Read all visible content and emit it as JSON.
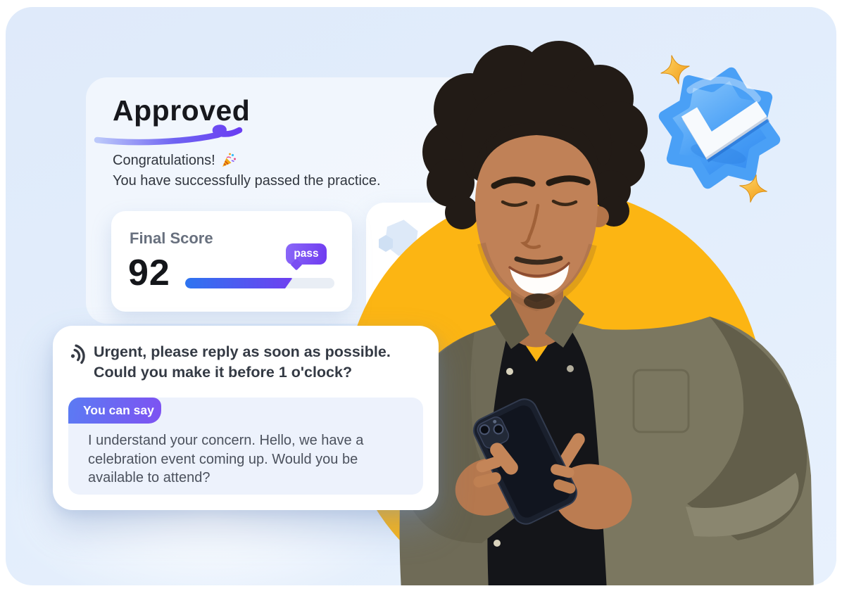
{
  "hero": {
    "approved_title": "Approved",
    "congrats_text": "Congratulations!",
    "success_text": "You have successfully passed the practice."
  },
  "score_card": {
    "label": "Final Score",
    "score": "92",
    "badge_label": "pass",
    "progress_percent": 72
  },
  "chat_card": {
    "message_line1": "Urgent, please reply as soon as possible.",
    "message_line2": "Could you make it before 1 o'clock?",
    "suggestion_tag": "You can say",
    "suggestion_text": "I understand your concern. Hello, we have a celebration event coming up. Would you be available to attend?"
  },
  "decor": {
    "photo_alt": "Smiling man with curly hair looking at his phone",
    "accent_yellow": "#fcb513",
    "accent_blue": "#3d9bf5",
    "accent_purple": "#7142ef",
    "progress_gradient_start": "#2d74f0",
    "progress_gradient_end": "#6f3ff0"
  }
}
